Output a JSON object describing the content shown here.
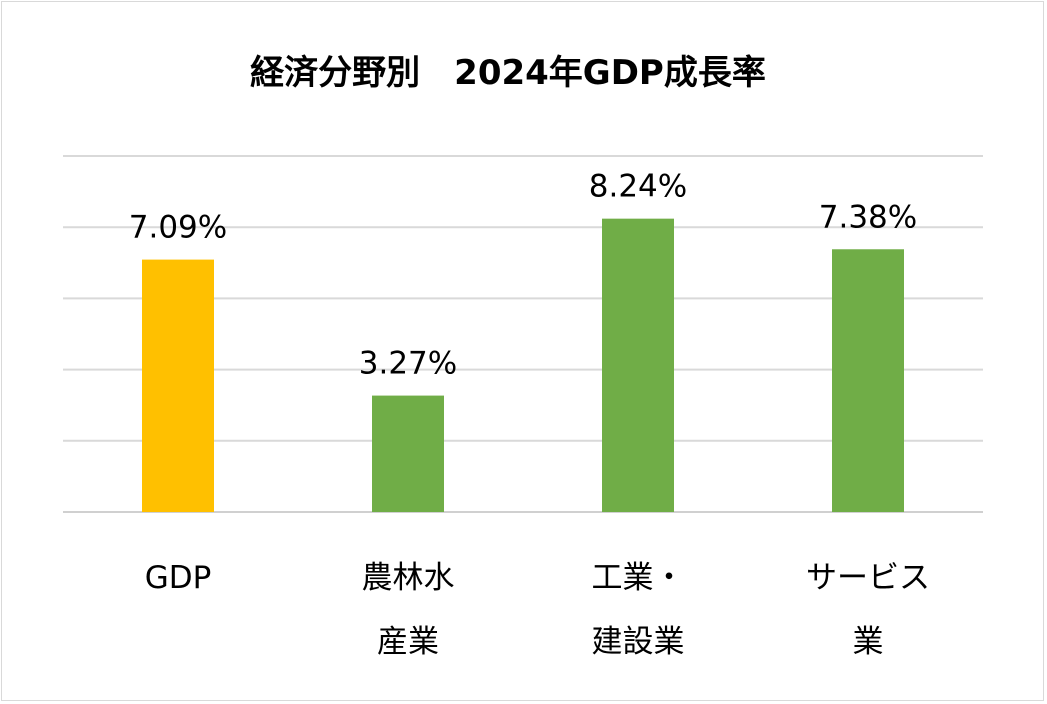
{
  "chart_data": {
    "type": "bar",
    "title": "経済分野別　2024年GDP成長率",
    "categories": [
      [
        "GDP"
      ],
      [
        "農林水",
        "産業"
      ],
      [
        "工業・",
        "建設業"
      ],
      [
        "サービス",
        "業"
      ]
    ],
    "values": [
      7.09,
      3.27,
      8.24,
      7.38
    ],
    "data_labels": [
      "7.09%",
      "3.27%",
      "8.24%",
      "7.38%"
    ],
    "colors": [
      "#FFC000",
      "#70AD47",
      "#70AD47",
      "#70AD47"
    ],
    "ylim": [
      0,
      10
    ],
    "ytick_step": 2,
    "grid": true,
    "y_axis_labels_shown": false,
    "legend": "none",
    "xlabel": "",
    "ylabel": ""
  }
}
